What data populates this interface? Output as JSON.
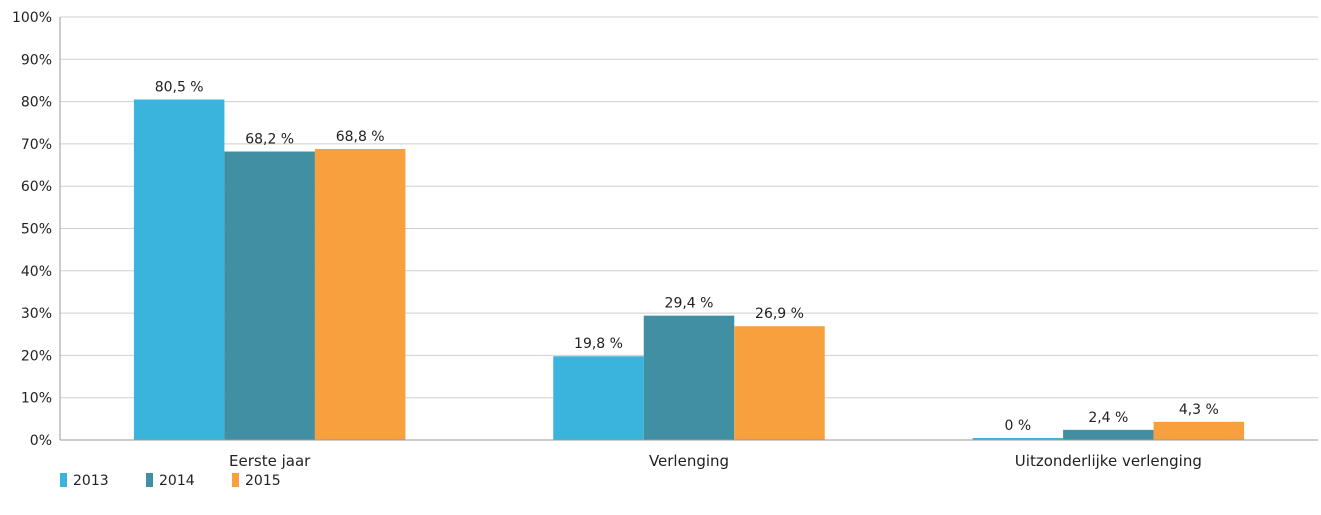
{
  "chart_data": {
    "type": "bar",
    "categories": [
      "Eerste jaar",
      "Verlenging",
      "Uitzonderlijke verlenging"
    ],
    "series": [
      {
        "name": "2013",
        "values": [
          80.5,
          19.8,
          0
        ],
        "labels": [
          "80,5 %",
          "19,8 %",
          "0 %"
        ],
        "color": "#3ab4dc"
      },
      {
        "name": "2014",
        "values": [
          68.2,
          29.4,
          2.4
        ],
        "labels": [
          "68,2 %",
          "29,4 %",
          "2,4 %"
        ],
        "color": "#418fa3"
      },
      {
        "name": "2015",
        "values": [
          68.8,
          26.9,
          4.3
        ],
        "labels": [
          "68,8 %",
          "26,9 %",
          "4,3 %"
        ],
        "color": "#f7a03d"
      }
    ],
    "ylim": [
      0,
      100
    ],
    "yticks": [
      0,
      10,
      20,
      30,
      40,
      50,
      60,
      70,
      80,
      90,
      100
    ],
    "ytick_labels": [
      "0%",
      "10%",
      "20%",
      "30%",
      "40%",
      "50%",
      "60%",
      "70%",
      "80%",
      "90%",
      "100%"
    ],
    "grid": true,
    "legend_position": "bottom-left"
  }
}
